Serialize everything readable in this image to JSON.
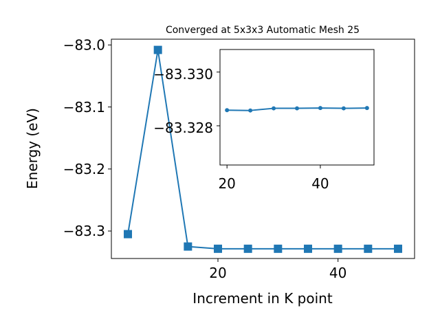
{
  "chart_data": [
    {
      "type": "line",
      "title": "Converged at 5x3x3 Automatic Mesh 25",
      "xlabel": "Increment in K point",
      "ylabel": "Energy (eV)",
      "xlim": [
        2.25,
        52.75
      ],
      "ylim": [
        -83.3443,
        -82.9907
      ],
      "xticks": [
        20,
        40
      ],
      "xtick_labels": [
        "20",
        "40"
      ],
      "yticks": [
        -83.3,
        -83.2,
        -83.1,
        -83.0
      ],
      "ytick_labels": [
        "−83.3",
        "−83.2",
        "−83.1",
        "−83.0"
      ],
      "grid": false,
      "series": [
        {
          "marker": "square",
          "color": "#1f77b4",
          "x": [
            5,
            10,
            15,
            20,
            25,
            30,
            35,
            40,
            45,
            50
          ],
          "values": [
            -83.305,
            -83.008,
            -83.325,
            -83.3286,
            -83.3286,
            -83.3286,
            -83.3286,
            -83.3286,
            -83.3286,
            -83.3286
          ]
        }
      ]
    },
    {
      "type": "line",
      "title": "",
      "xlabel": "",
      "ylabel": "",
      "xlim": [
        18.5,
        51.5
      ],
      "ylim": [
        -83.32654,
        -83.33084
      ],
      "xticks": [
        20,
        40
      ],
      "xtick_labels": [
        "20",
        "40"
      ],
      "yticks": [
        -83.33,
        -83.328
      ],
      "ytick_labels": [
        "−83.330",
        "−83.328"
      ],
      "grid": false,
      "series": [
        {
          "marker": "circle",
          "color": "#1f77b4",
          "x": [
            20,
            25,
            30,
            35,
            40,
            45,
            50
          ],
          "values": [
            -83.32858,
            -83.32857,
            -83.32865,
            -83.32865,
            -83.32866,
            -83.32865,
            -83.32866
          ]
        }
      ]
    }
  ]
}
